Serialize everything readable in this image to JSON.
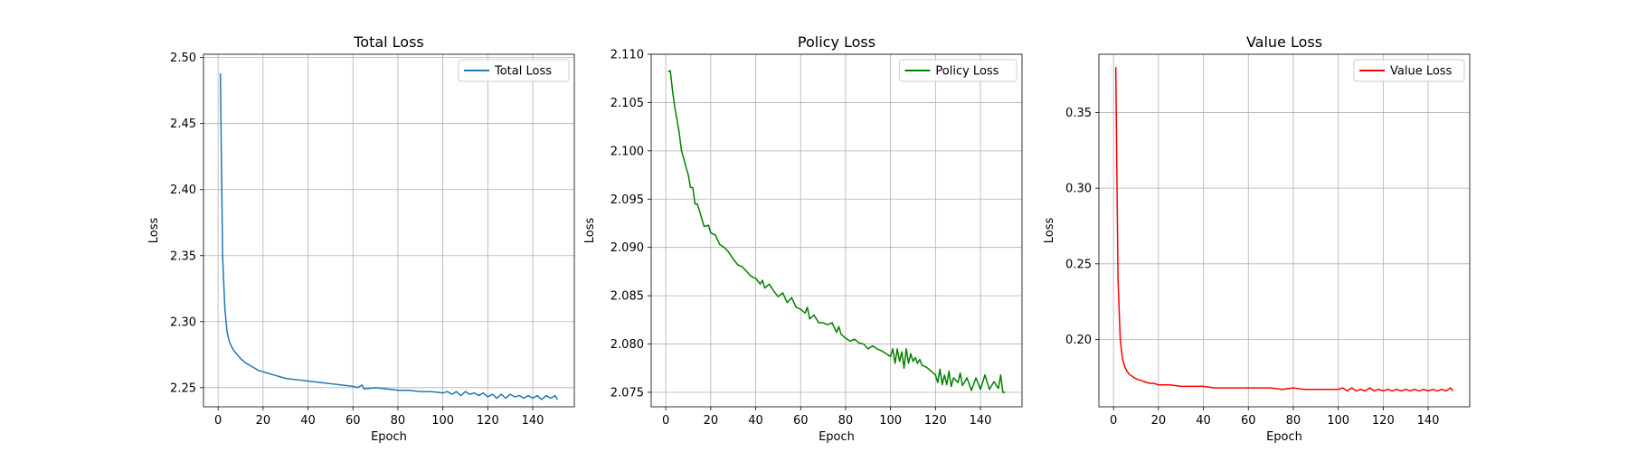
{
  "chart_data": [
    {
      "type": "line",
      "title": "Total Loss",
      "xlabel": "Epoch",
      "ylabel": "Loss",
      "xlim": [
        -6.5,
        158.5
      ],
      "ylim": [
        2.2355,
        2.5025
      ],
      "xticks": [
        0,
        20,
        40,
        60,
        80,
        100,
        120,
        140
      ],
      "yticks": [
        2.25,
        2.3,
        2.35,
        2.4,
        2.45,
        2.5
      ],
      "ytick_labels": [
        "2.25",
        "2.30",
        "2.35",
        "2.40",
        "2.45",
        "2.50"
      ],
      "grid": true,
      "legend_position": "upper right",
      "color": "#1f77b4",
      "series": [
        {
          "name": "Total Loss",
          "x": [
            1,
            2,
            3,
            4,
            5,
            6,
            7,
            8,
            9,
            10,
            12,
            14,
            16,
            18,
            20,
            22,
            24,
            26,
            28,
            30,
            35,
            40,
            45,
            50,
            55,
            60,
            62,
            64,
            65,
            70,
            75,
            80,
            85,
            90,
            95,
            100,
            102,
            104,
            106,
            108,
            110,
            112,
            114,
            116,
            118,
            120,
            122,
            124,
            126,
            128,
            130,
            132,
            134,
            136,
            138,
            140,
            142,
            144,
            146,
            148,
            150,
            151
          ],
          "y": [
            2.488,
            2.35,
            2.31,
            2.292,
            2.285,
            2.281,
            2.278,
            2.276,
            2.274,
            2.272,
            2.269,
            2.267,
            2.265,
            2.263,
            2.262,
            2.261,
            2.26,
            2.259,
            2.258,
            2.257,
            2.256,
            2.255,
            2.254,
            2.253,
            2.252,
            2.251,
            2.25,
            2.252,
            2.249,
            2.25,
            2.249,
            2.248,
            2.248,
            2.247,
            2.247,
            2.246,
            2.247,
            2.245,
            2.247,
            2.244,
            2.247,
            2.245,
            2.246,
            2.244,
            2.246,
            2.243,
            2.245,
            2.242,
            2.245,
            2.242,
            2.245,
            2.243,
            2.244,
            2.242,
            2.244,
            2.242,
            2.244,
            2.241,
            2.244,
            2.242,
            2.244,
            2.241
          ]
        }
      ]
    },
    {
      "type": "line",
      "title": "Policy Loss",
      "xlabel": "Epoch",
      "ylabel": "Loss",
      "xlim": [
        -6.5,
        158.5
      ],
      "ylim": [
        2.0735,
        2.11
      ],
      "xticks": [
        0,
        20,
        40,
        60,
        80,
        100,
        120,
        140
      ],
      "yticks": [
        2.075,
        2.08,
        2.085,
        2.09,
        2.095,
        2.1,
        2.105,
        2.11
      ],
      "ytick_labels": [
        "2.075",
        "2.080",
        "2.085",
        "2.090",
        "2.095",
        "2.100",
        "2.105",
        "2.110"
      ],
      "grid": true,
      "legend_position": "upper right",
      "color": "#008000",
      "series": [
        {
          "name": "Policy Loss",
          "x": [
            1,
            2,
            3,
            4,
            5,
            6,
            7,
            8,
            9,
            10,
            11,
            12,
            13,
            14,
            15,
            16,
            17,
            18,
            19,
            20,
            22,
            24,
            26,
            28,
            30,
            32,
            34,
            36,
            38,
            40,
            42,
            43,
            44,
            46,
            48,
            50,
            52,
            54,
            56,
            58,
            60,
            62,
            63,
            64,
            66,
            68,
            70,
            72,
            74,
            76,
            77,
            78,
            80,
            82,
            84,
            86,
            88,
            90,
            92,
            94,
            96,
            98,
            100,
            101,
            102,
            103,
            104,
            105,
            106,
            107,
            108,
            109,
            110,
            111,
            112,
            113,
            114,
            116,
            118,
            120,
            121,
            122,
            123,
            124,
            125,
            126,
            127,
            128,
            130,
            131,
            132,
            134,
            136,
            138,
            140,
            142,
            144,
            146,
            148,
            149,
            150,
            151
          ],
          "y": [
            2.1082,
            2.1083,
            2.1062,
            2.1045,
            2.1032,
            2.1018,
            2.1,
            2.0992,
            2.0983,
            2.0975,
            2.0962,
            2.0962,
            2.0945,
            2.0945,
            2.0938,
            2.093,
            2.0922,
            2.0922,
            2.0923,
            2.0915,
            2.0913,
            2.0903,
            2.09,
            2.0895,
            2.0888,
            2.0882,
            2.088,
            2.0875,
            2.087,
            2.0868,
            2.0862,
            2.0866,
            2.0858,
            2.0862,
            2.0855,
            2.0849,
            2.0853,
            2.0843,
            2.0848,
            2.0838,
            2.0836,
            2.0832,
            2.0838,
            2.0826,
            2.083,
            2.0822,
            2.0822,
            2.082,
            2.0822,
            2.0812,
            2.0818,
            2.081,
            2.0806,
            2.0803,
            2.0805,
            2.0801,
            2.08,
            2.0795,
            2.0798,
            2.0795,
            2.0793,
            2.079,
            2.0787,
            2.0795,
            2.078,
            2.0795,
            2.0782,
            2.0792,
            2.0775,
            2.0795,
            2.078,
            2.079,
            2.0782,
            2.0786,
            2.078,
            2.0784,
            2.0778,
            2.0776,
            2.0772,
            2.0768,
            2.076,
            2.0774,
            2.0758,
            2.0768,
            2.0758,
            2.0772,
            2.0756,
            2.0765,
            2.076,
            2.077,
            2.0757,
            2.0765,
            2.0752,
            2.0765,
            2.0753,
            2.0768,
            2.0753,
            2.0761,
            2.0754,
            2.0768,
            2.075,
            2.075
          ]
        }
      ]
    },
    {
      "type": "line",
      "title": "Value Loss",
      "xlabel": "Epoch",
      "ylabel": "Loss",
      "xlim": [
        -6.5,
        158.5
      ],
      "ylim": [
        0.1555,
        0.3885
      ],
      "xticks": [
        0,
        20,
        40,
        60,
        80,
        100,
        120,
        140
      ],
      "yticks": [
        0.2,
        0.25,
        0.3,
        0.35
      ],
      "ytick_labels": [
        "0.20",
        "0.25",
        "0.30",
        "0.35"
      ],
      "grid": true,
      "legend_position": "upper right",
      "color": "#ff0000",
      "series": [
        {
          "name": "Value Loss",
          "x": [
            1,
            2,
            3,
            4,
            5,
            6,
            7,
            8,
            9,
            10,
            12,
            14,
            16,
            18,
            20,
            22,
            25,
            30,
            35,
            40,
            45,
            50,
            55,
            60,
            65,
            70,
            75,
            80,
            85,
            90,
            95,
            100,
            102,
            104,
            106,
            108,
            110,
            112,
            114,
            116,
            118,
            120,
            122,
            124,
            126,
            128,
            130,
            132,
            134,
            136,
            138,
            140,
            142,
            144,
            146,
            148,
            150,
            151
          ],
          "y": [
            0.38,
            0.24,
            0.2,
            0.187,
            0.182,
            0.179,
            0.177,
            0.176,
            0.175,
            0.174,
            0.173,
            0.172,
            0.171,
            0.171,
            0.17,
            0.17,
            0.17,
            0.169,
            0.169,
            0.169,
            0.168,
            0.168,
            0.168,
            0.168,
            0.168,
            0.168,
            0.167,
            0.168,
            0.167,
            0.167,
            0.167,
            0.167,
            0.168,
            0.166,
            0.168,
            0.166,
            0.167,
            0.166,
            0.168,
            0.166,
            0.167,
            0.166,
            0.167,
            0.166,
            0.167,
            0.166,
            0.167,
            0.166,
            0.167,
            0.166,
            0.167,
            0.166,
            0.167,
            0.166,
            0.167,
            0.166,
            0.168,
            0.166
          ]
        }
      ]
    }
  ]
}
